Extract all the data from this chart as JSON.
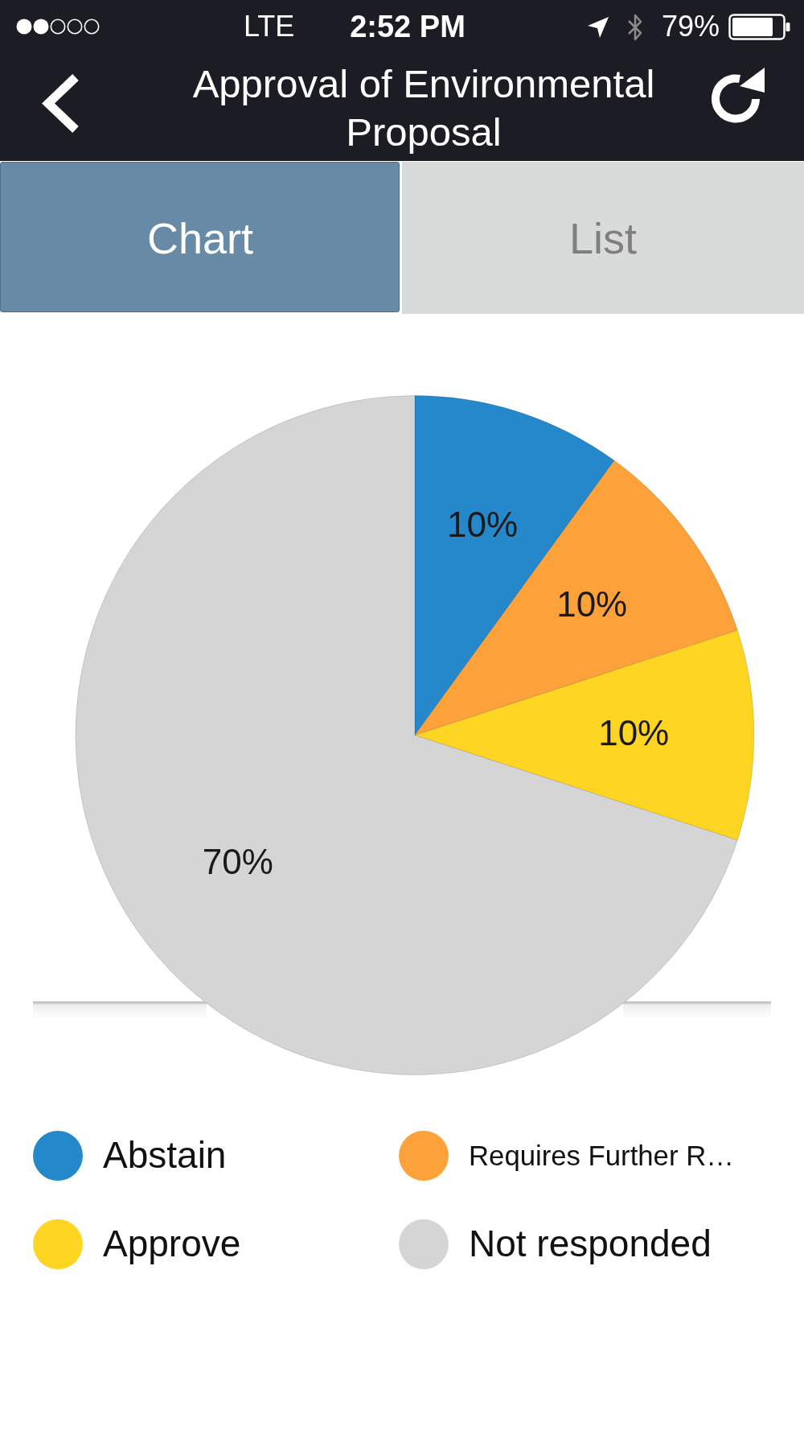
{
  "chart_data": {
    "type": "pie",
    "title": "Approval of Environmental Proposal",
    "categories": [
      "Abstain",
      "Requires Further R…",
      "Approve",
      "Not responded"
    ],
    "values": [
      10,
      10,
      10,
      70
    ],
    "colors": [
      "#2488cb",
      "#fda13b",
      "#fdd522",
      "#d5d5d5"
    ],
    "value_labels": [
      "10%",
      "10%",
      "10%",
      "70%"
    ],
    "legend": "bottom",
    "annotations": [
      "LTE",
      "2:52 PM",
      "79%",
      "Chart",
      "List"
    ]
  }
}
